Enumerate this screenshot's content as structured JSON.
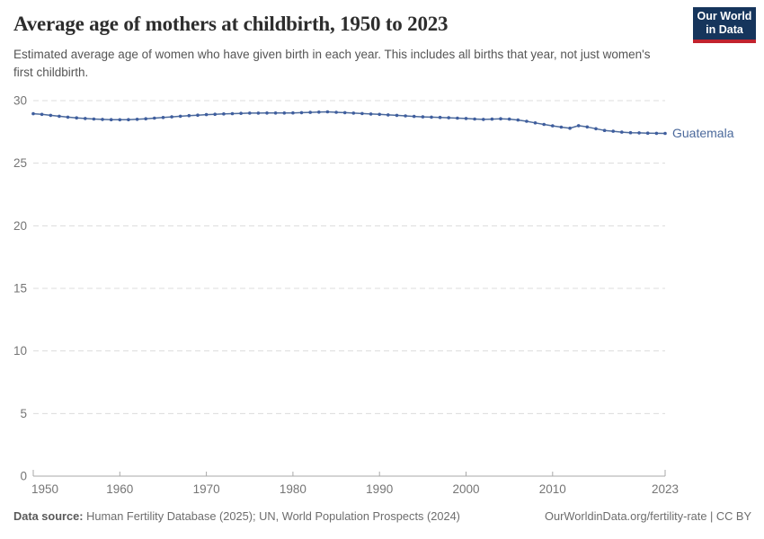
{
  "header": {
    "title": "Average age of mothers at childbirth, 1950 to 2023",
    "subtitle": "Estimated average age of women who have given birth in each year. This includes all births that year, not just women's first childbirth.",
    "logo": {
      "line1": "Our World",
      "line2": "in Data",
      "bg_color": "#16355c",
      "accent_color": "#c2232e"
    }
  },
  "chart_data": {
    "type": "line",
    "title": "Average age of mothers at childbirth, 1950 to 2023",
    "xlabel": "",
    "ylabel": "",
    "xlim": [
      1950,
      2023
    ],
    "ylim": [
      0,
      30
    ],
    "x_ticks": [
      1950,
      1960,
      1970,
      1980,
      1990,
      2000,
      2010,
      2023
    ],
    "y_ticks": [
      0,
      5,
      10,
      15,
      20,
      25,
      30
    ],
    "grid": "horizontal-dashed",
    "legend_position": "end-of-line-label",
    "series": [
      {
        "name": "Guatemala",
        "color": "#4c6a9c",
        "marker_color": "#3f5e9e",
        "x": [
          1950,
          1951,
          1952,
          1953,
          1954,
          1955,
          1956,
          1957,
          1958,
          1959,
          1960,
          1961,
          1962,
          1963,
          1964,
          1965,
          1966,
          1967,
          1968,
          1969,
          1970,
          1971,
          1972,
          1973,
          1974,
          1975,
          1976,
          1977,
          1978,
          1979,
          1980,
          1981,
          1982,
          1983,
          1984,
          1985,
          1986,
          1987,
          1988,
          1989,
          1990,
          1991,
          1992,
          1993,
          1994,
          1995,
          1996,
          1997,
          1998,
          1999,
          2000,
          2001,
          2002,
          2003,
          2004,
          2005,
          2006,
          2007,
          2008,
          2009,
          2010,
          2011,
          2012,
          2013,
          2014,
          2015,
          2016,
          2017,
          2018,
          2019,
          2020,
          2021,
          2022,
          2023
        ],
        "values": [
          28.95,
          28.9,
          28.82,
          28.75,
          28.68,
          28.62,
          28.57,
          28.53,
          28.5,
          28.48,
          28.47,
          28.48,
          28.51,
          28.55,
          28.6,
          28.65,
          28.7,
          28.75,
          28.8,
          28.84,
          28.88,
          28.91,
          28.94,
          28.96,
          28.98,
          29.0,
          29.0,
          29.01,
          29.01,
          29.01,
          29.02,
          29.04,
          29.06,
          29.08,
          29.1,
          29.07,
          29.04,
          29.0,
          28.97,
          28.93,
          28.9,
          28.86,
          28.82,
          28.78,
          28.74,
          28.7,
          28.68,
          28.66,
          28.63,
          28.6,
          28.57,
          28.53,
          28.5,
          28.52,
          28.55,
          28.52,
          28.45,
          28.35,
          28.22,
          28.1,
          27.98,
          27.88,
          27.8,
          28.0,
          27.9,
          27.75,
          27.62,
          27.55,
          27.48,
          27.44,
          27.42,
          27.4,
          27.39,
          27.38
        ]
      }
    ],
    "axis_colors": {
      "grid": "#dcdcdc",
      "axis_line": "#a9a9a9",
      "tick_label": "#757575"
    }
  },
  "footer": {
    "datasource_label": "Data source:",
    "datasource_text": "Human Fertility Database (2025); UN, World Population Prospects (2024)",
    "link_text": "OurWorldinData.org/fertility-rate | CC BY"
  }
}
